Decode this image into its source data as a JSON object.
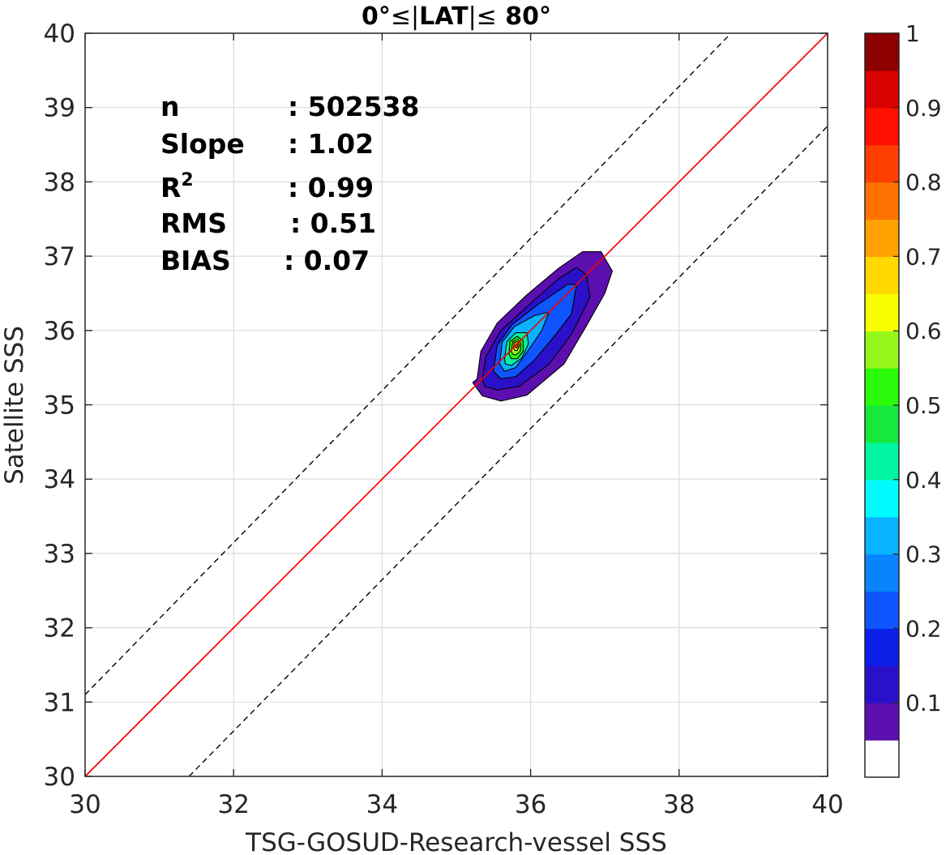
{
  "chart_data": {
    "type": "contour",
    "title_prefix": "0°",
    "title_lat": "LAT",
    "title_suffix": " 80°",
    "xlabel": "TSG-GOSUD-Research-vessel SSS",
    "ylabel": "Satellite SSS",
    "xlim": [
      30,
      40
    ],
    "ylim": [
      30,
      40
    ],
    "xticks": [
      "30",
      "32",
      "34",
      "36",
      "38",
      "40"
    ],
    "yticks": [
      "30",
      "31",
      "32",
      "33",
      "34",
      "35",
      "36",
      "37",
      "38",
      "39",
      "40"
    ],
    "grid": true,
    "stats": {
      "n_label": "n",
      "n_value": ": 502538",
      "slope_label": "Slope",
      "slope_value": ": 1.02",
      "r2_label": "R",
      "r2_sup": "2",
      "r2_value": ": 0.99",
      "rms_label": "RMS",
      "rms_value": ": 0.51",
      "bias_label": "BIAS",
      "bias_value": ": 0.07"
    },
    "lines": {
      "identity": {
        "x": [
          30,
          40
        ],
        "y": [
          30,
          40
        ],
        "color": "#000000",
        "style": "solid"
      },
      "fit": {
        "x": [
          30,
          40
        ],
        "y": [
          30,
          40
        ],
        "color": "#ff0000",
        "style": "solid"
      },
      "upper_bound": {
        "x": [
          30,
          38.7
        ],
        "y": [
          31.1,
          40
        ],
        "color": "#000000",
        "style": "dashed"
      },
      "lower_bound": {
        "x": [
          31.4,
          40
        ],
        "y": [
          30,
          38.75
        ],
        "color": "#000000",
        "style": "dashed"
      }
    },
    "contour_peak": {
      "x": 35.8,
      "y": 35.8
    },
    "colorbar": {
      "ticks": [
        "0.1",
        "0.2",
        "0.3",
        "0.4",
        "0.5",
        "0.6",
        "0.7",
        "0.8",
        "0.9",
        "1"
      ],
      "colors": [
        "#ffffff",
        "#5b0fae",
        "#2a11c9",
        "#0b1fe6",
        "#0f55ff",
        "#0a83ff",
        "#08b3ff",
        "#00fbff",
        "#00f5a0",
        "#16e83c",
        "#2bfa0a",
        "#96f81a",
        "#faff00",
        "#ffd800",
        "#ffa200",
        "#ff7100",
        "#ff4000",
        "#ff1000",
        "#d80000",
        "#8e0000"
      ]
    },
    "contour_levels": [
      {
        "level": 0.05,
        "color": "#5b0fae",
        "points": [
          [
            35.28,
            35.35
          ],
          [
            35.33,
            35.72
          ],
          [
            35.55,
            36.1
          ],
          [
            35.95,
            36.48
          ],
          [
            36.38,
            36.84
          ],
          [
            36.7,
            37.06
          ],
          [
            36.95,
            37.06
          ],
          [
            37.1,
            36.8
          ],
          [
            37.0,
            36.5
          ],
          [
            36.75,
            36.06
          ],
          [
            36.45,
            35.55
          ],
          [
            35.95,
            35.13
          ],
          [
            35.6,
            35.05
          ],
          [
            35.35,
            35.12
          ],
          [
            35.22,
            35.3
          ]
        ]
      },
      {
        "level": 0.1,
        "color": "#2a11c9",
        "points": [
          [
            35.35,
            35.35
          ],
          [
            35.4,
            35.65
          ],
          [
            35.6,
            36.0
          ],
          [
            35.95,
            36.32
          ],
          [
            36.38,
            36.7
          ],
          [
            36.62,
            36.85
          ],
          [
            36.75,
            36.75
          ],
          [
            36.8,
            36.45
          ],
          [
            36.55,
            35.95
          ],
          [
            36.25,
            35.55
          ],
          [
            35.85,
            35.25
          ],
          [
            35.55,
            35.2
          ],
          [
            35.38,
            35.25
          ]
        ]
      },
      {
        "level": 0.2,
        "color": "#0f55ff",
        "points": [
          [
            35.5,
            35.45
          ],
          [
            35.55,
            35.8
          ],
          [
            35.75,
            36.08
          ],
          [
            36.1,
            36.35
          ],
          [
            36.5,
            36.62
          ],
          [
            36.62,
            36.62
          ],
          [
            36.55,
            36.22
          ],
          [
            36.3,
            35.9
          ],
          [
            36.05,
            35.6
          ],
          [
            35.8,
            35.38
          ],
          [
            35.6,
            35.35
          ]
        ]
      },
      {
        "level": 0.3,
        "color": "#08b3ff",
        "points": [
          [
            35.58,
            35.55
          ],
          [
            35.62,
            35.85
          ],
          [
            35.78,
            36.05
          ],
          [
            36.05,
            36.2
          ],
          [
            36.25,
            36.25
          ],
          [
            36.15,
            36.0
          ],
          [
            35.98,
            35.75
          ],
          [
            35.8,
            35.5
          ],
          [
            35.65,
            35.45
          ]
        ]
      },
      {
        "level": 0.4,
        "color": "#00f5a0",
        "points": [
          [
            35.65,
            35.62
          ],
          [
            35.68,
            35.85
          ],
          [
            35.8,
            35.97
          ],
          [
            35.95,
            35.97
          ],
          [
            35.97,
            35.82
          ],
          [
            35.88,
            35.63
          ],
          [
            35.74,
            35.53
          ],
          [
            35.66,
            35.55
          ]
        ]
      },
      {
        "level": 0.5,
        "color": "#2bfa0a",
        "points": [
          [
            35.71,
            35.68
          ],
          [
            35.72,
            35.85
          ],
          [
            35.82,
            35.92
          ],
          [
            35.9,
            35.86
          ],
          [
            35.9,
            35.72
          ],
          [
            35.82,
            35.62
          ],
          [
            35.74,
            35.62
          ]
        ]
      },
      {
        "level": 0.6,
        "color": "#96f81a",
        "points": [
          [
            35.74,
            35.72
          ],
          [
            35.76,
            35.85
          ],
          [
            35.83,
            35.88
          ],
          [
            35.87,
            35.82
          ],
          [
            35.86,
            35.72
          ],
          [
            35.8,
            35.67
          ],
          [
            35.76,
            35.68
          ]
        ]
      },
      {
        "level": 0.7,
        "color": "#ffd800",
        "points": [
          [
            35.77,
            35.76
          ],
          [
            35.78,
            35.84
          ],
          [
            35.83,
            35.85
          ],
          [
            35.85,
            35.8
          ],
          [
            35.82,
            35.73
          ],
          [
            35.79,
            35.73
          ]
        ]
      },
      {
        "level": 0.8,
        "color": "#ff7100",
        "points": [
          [
            35.795,
            35.78
          ],
          [
            35.8,
            35.82
          ],
          [
            35.825,
            35.82
          ],
          [
            35.83,
            35.79
          ],
          [
            35.81,
            35.765
          ]
        ]
      }
    ]
  }
}
